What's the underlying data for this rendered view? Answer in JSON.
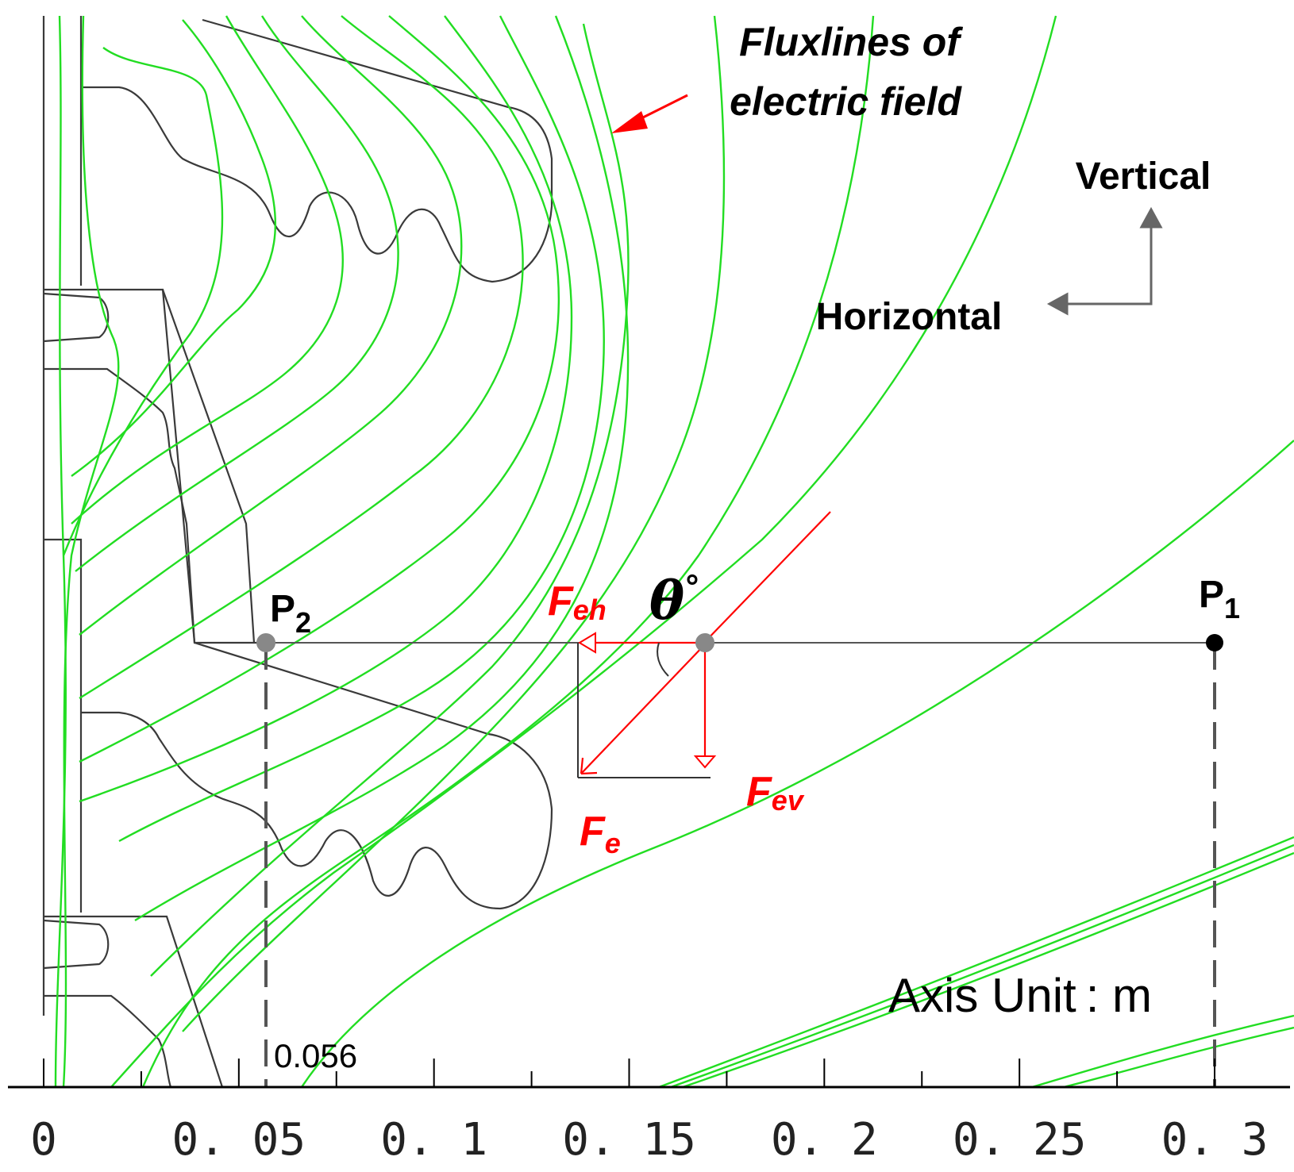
{
  "figure": {
    "flux_label": [
      "Fluxlines of",
      "electric field"
    ],
    "direction_labels": {
      "vertical": "Vertical",
      "horizontal": "Horizontal"
    },
    "points": {
      "p1": {
        "letter": "P",
        "index": "1"
      },
      "p2": {
        "letter": "P",
        "index": "2"
      }
    },
    "p2_position_label": "0.056",
    "axis_unit": "Axis Unit : m",
    "forces": {
      "f_eh": {
        "main": "F",
        "sub": "eh"
      },
      "f_ev": {
        "main": "F",
        "sub": "ev"
      },
      "f_e": {
        "main": "F",
        "sub": "e"
      }
    },
    "angle_label": "θ",
    "angle_degree": "°",
    "x_ticks": [
      {
        "value": 0,
        "label": "0"
      },
      {
        "value": 0.05,
        "label": "0. 05"
      },
      {
        "value": 0.1,
        "label": "0. 1"
      },
      {
        "value": 0.15,
        "label": "0. 15"
      },
      {
        "value": 0.2,
        "label": "0. 2"
      },
      {
        "value": 0.25,
        "label": "0. 25"
      },
      {
        "value": 0.3,
        "label": "0. 3"
      }
    ],
    "colors": {
      "fluxline": "#22dd22",
      "force": "#ff0000",
      "outline": "#333333",
      "marker": "#888888"
    }
  }
}
